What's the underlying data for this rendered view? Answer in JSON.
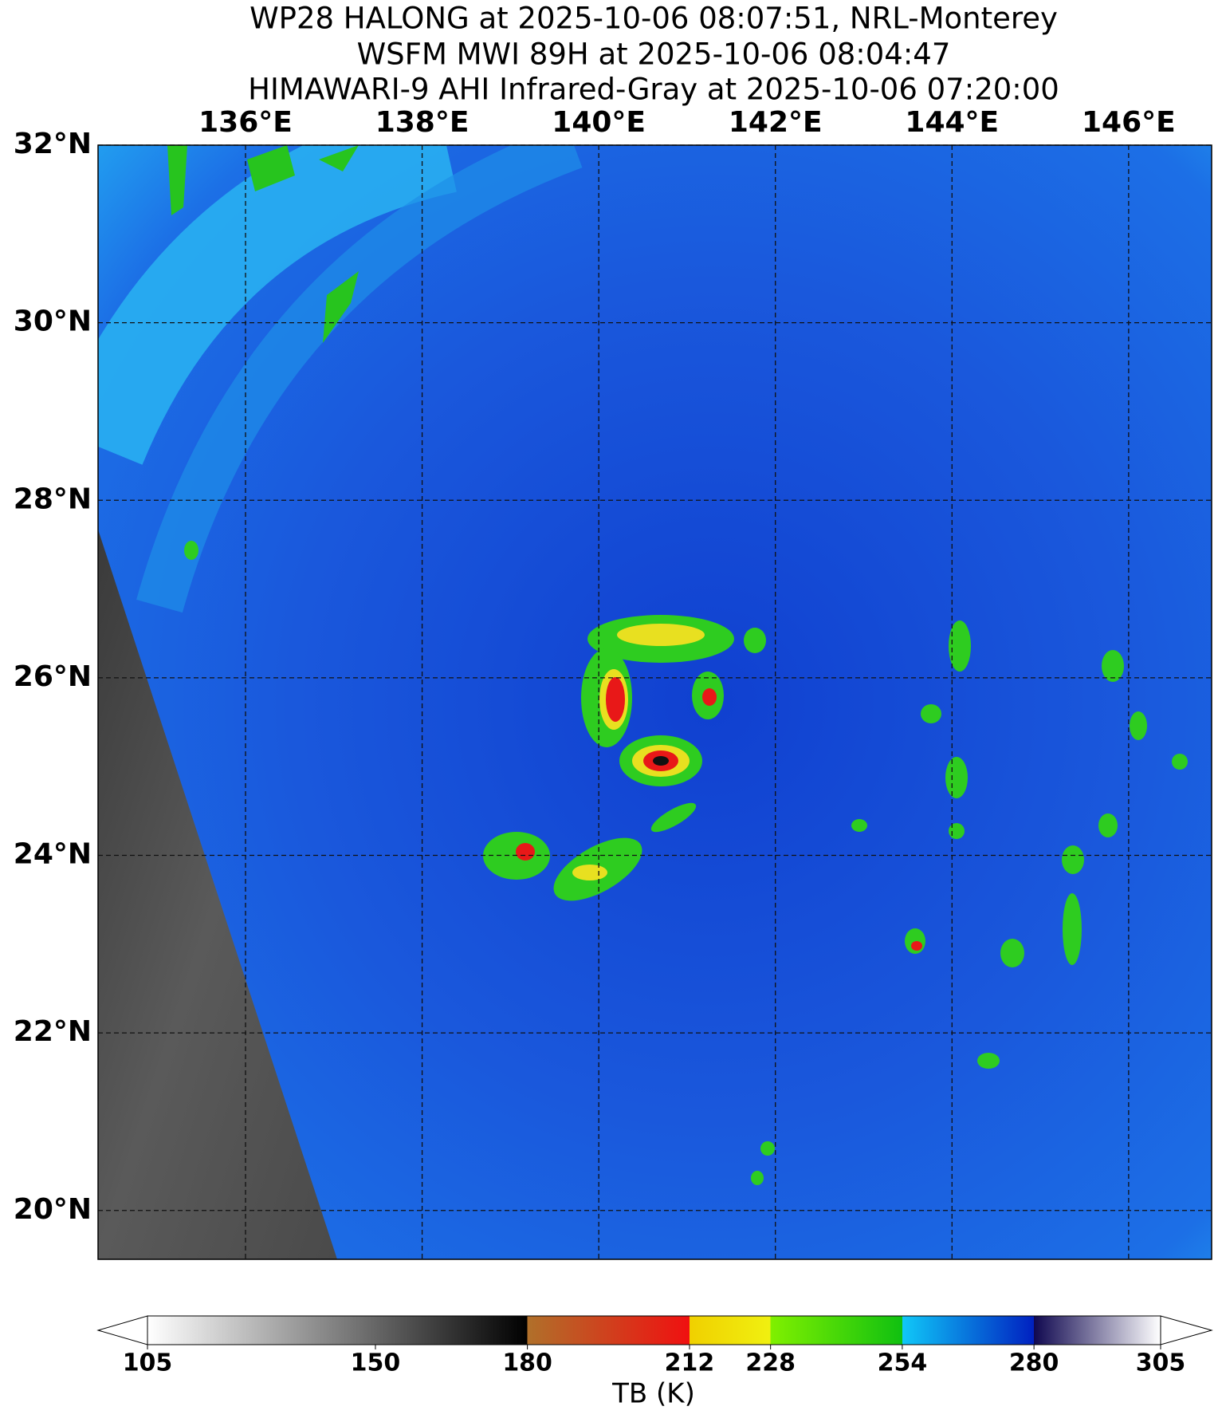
{
  "title_lines": [
    "WP28 HALONG at 2025-10-06 08:07:51, NRL-Monterey",
    "WSFM MWI 89H at 2025-10-06 08:04:47",
    "HIMAWARI-9 AHI Infrared-Gray at 2025-10-06 07:20:00"
  ],
  "map": {
    "xlim": [
      134.33,
      146.94
    ],
    "ylim": [
      19.45,
      32.0
    ],
    "xticks": [
      {
        "value": 136,
        "label": "136°E"
      },
      {
        "value": 138,
        "label": "138°E"
      },
      {
        "value": 140,
        "label": "140°E"
      },
      {
        "value": 142,
        "label": "142°E"
      },
      {
        "value": 144,
        "label": "144°E"
      },
      {
        "value": 146,
        "label": "146°E"
      }
    ],
    "yticks": [
      {
        "value": 32,
        "label": "32°N"
      },
      {
        "value": 30,
        "label": "30°N"
      },
      {
        "value": 28,
        "label": "28°N"
      },
      {
        "value": 26,
        "label": "26°N"
      },
      {
        "value": 24,
        "label": "24°N"
      },
      {
        "value": 22,
        "label": "22°N"
      },
      {
        "value": 20,
        "label": "20°N"
      }
    ]
  },
  "colorbar": {
    "label": "TB (K)",
    "ticks": [
      105,
      150,
      180,
      212,
      228,
      254,
      280,
      305
    ]
  }
}
